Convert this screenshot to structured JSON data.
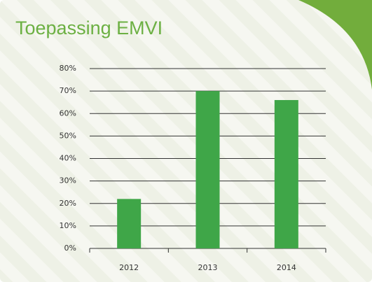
{
  "chart_data": {
    "type": "bar",
    "title": "Toepassing EMVI",
    "categories": [
      "2012",
      "2013",
      "2014"
    ],
    "values": [
      22,
      70,
      66
    ],
    "color": "#3fa648",
    "ylim": [
      0,
      80
    ],
    "yticks": [
      {
        "value": 0,
        "label": "0%"
      },
      {
        "value": 10,
        "label": "10%"
      },
      {
        "value": 20,
        "label": "20%"
      },
      {
        "value": 30,
        "label": "30%"
      },
      {
        "value": 40,
        "label": "40%"
      },
      {
        "value": 50,
        "label": "50%"
      },
      {
        "value": 60,
        "label": "60%"
      },
      {
        "value": 70,
        "label": "70%"
      },
      {
        "value": 80,
        "label": "80%"
      }
    ],
    "grid": true
  }
}
